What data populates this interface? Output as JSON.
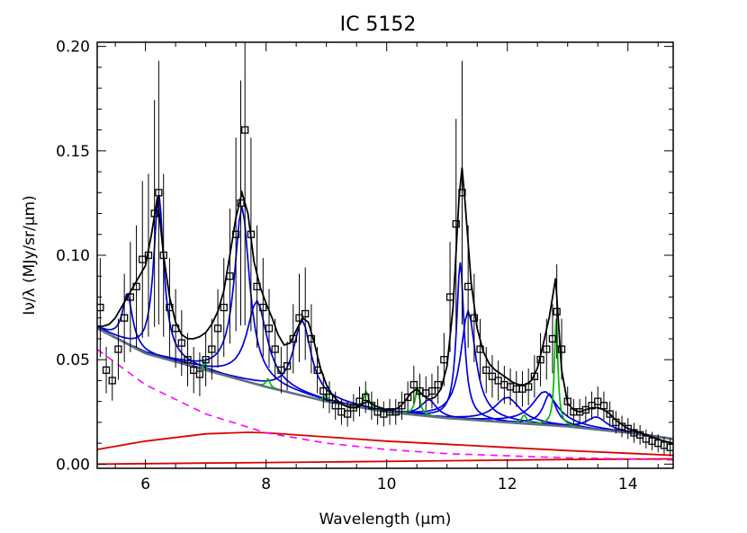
{
  "chart_data": {
    "type": "line",
    "title": "IC 5152",
    "xlabel": "Wavelength (μm)",
    "ylabel": "Iν/λ (MJy/sr/μm)",
    "xlim": [
      5.2,
      14.75
    ],
    "ylim": [
      -0.002,
      0.202
    ],
    "x_ticks": [
      6,
      8,
      10,
      12,
      14
    ],
    "x_tick_labels": [
      "6",
      "8",
      "10",
      "12",
      "14"
    ],
    "y_ticks": [
      0.0,
      0.05,
      0.1,
      0.15,
      0.2
    ],
    "y_tick_labels": [
      "0.00",
      "0.05",
      "0.10",
      "0.15",
      "0.20"
    ],
    "grid": false,
    "colors": {
      "data": "#000000",
      "total_fit": "#000000",
      "pah_features": "#0000dd",
      "atomic_lines": "#00bb00",
      "continuum": "#607080",
      "dust_components": "#dd0000",
      "stellar": "#ff00ff"
    },
    "series": [
      {
        "role": "data",
        "x": [
          5.25,
          5.35,
          5.45,
          5.55,
          5.65,
          5.75,
          5.85,
          5.95,
          6.05,
          6.15,
          6.22,
          6.3,
          6.4,
          6.5,
          6.6,
          6.7,
          6.8,
          6.9,
          7.0,
          7.1,
          7.2,
          7.3,
          7.4,
          7.5,
          7.58,
          7.65,
          7.75,
          7.85,
          7.95,
          8.05,
          8.15,
          8.25,
          8.35,
          8.45,
          8.55,
          8.65,
          8.75,
          8.85,
          8.95,
          9.05,
          9.15,
          9.25,
          9.35,
          9.45,
          9.55,
          9.65,
          9.75,
          9.85,
          9.95,
          10.05,
          10.15,
          10.25,
          10.35,
          10.45,
          10.55,
          10.65,
          10.75,
          10.85,
          10.95,
          11.05,
          11.15,
          11.25,
          11.35,
          11.45,
          11.55,
          11.65,
          11.75,
          11.85,
          11.95,
          12.05,
          12.15,
          12.25,
          12.35,
          12.45,
          12.55,
          12.65,
          12.75,
          12.82,
          12.9,
          13.0,
          13.1,
          13.2,
          13.3,
          13.4,
          13.5,
          13.6,
          13.7,
          13.8,
          13.9,
          14.0,
          14.1,
          14.2,
          14.3,
          14.4,
          14.5,
          14.6,
          14.7
        ],
        "y": [
          0.075,
          0.045,
          0.04,
          0.055,
          0.07,
          0.08,
          0.085,
          0.098,
          0.1,
          0.12,
          0.13,
          0.1,
          0.075,
          0.065,
          0.058,
          0.05,
          0.045,
          0.043,
          0.05,
          0.055,
          0.065,
          0.075,
          0.09,
          0.11,
          0.125,
          0.16,
          0.11,
          0.085,
          0.075,
          0.065,
          0.055,
          0.045,
          0.047,
          0.06,
          0.07,
          0.072,
          0.06,
          0.045,
          0.035,
          0.032,
          0.028,
          0.025,
          0.024,
          0.027,
          0.03,
          0.032,
          0.028,
          0.025,
          0.024,
          0.025,
          0.025,
          0.028,
          0.032,
          0.038,
          0.035,
          0.034,
          0.035,
          0.038,
          0.05,
          0.08,
          0.115,
          0.13,
          0.085,
          0.07,
          0.055,
          0.045,
          0.042,
          0.04,
          0.038,
          0.037,
          0.036,
          0.036,
          0.037,
          0.042,
          0.05,
          0.055,
          0.06,
          0.073,
          0.055,
          0.03,
          0.025,
          0.025,
          0.026,
          0.028,
          0.03,
          0.028,
          0.024,
          0.02,
          0.018,
          0.017,
          0.015,
          0.014,
          0.012,
          0.011,
          0.01,
          0.009,
          0.008
        ]
      },
      {
        "role": "total-fit",
        "x": [
          5.2,
          5.3,
          5.4,
          5.5,
          5.6,
          5.7,
          5.8,
          5.9,
          6.0,
          6.1,
          6.2,
          6.3,
          6.4,
          6.5,
          6.6,
          6.7,
          6.8,
          6.9,
          7.0,
          7.1,
          7.2,
          7.3,
          7.4,
          7.5,
          7.6,
          7.7,
          7.8,
          7.9,
          8.0,
          8.1,
          8.2,
          8.3,
          8.4,
          8.5,
          8.6,
          8.7,
          8.8,
          8.9,
          9.0,
          9.1,
          9.2,
          9.3,
          9.4,
          9.5,
          9.6,
          9.7,
          9.8,
          9.9,
          10.0,
          10.1,
          10.2,
          10.3,
          10.4,
          10.5,
          10.6,
          10.7,
          10.8,
          10.9,
          11.0,
          11.1,
          11.2,
          11.25,
          11.3,
          11.4,
          11.5,
          11.6,
          11.7,
          11.8,
          11.9,
          12.0,
          12.1,
          12.2,
          12.3,
          12.4,
          12.5,
          12.6,
          12.7,
          12.8,
          12.9,
          13.0,
          13.1,
          13.2,
          13.3,
          13.4,
          13.5,
          13.6,
          13.7,
          13.8,
          13.9,
          14.0,
          14.2,
          14.4,
          14.6,
          14.75
        ],
        "y": [
          0.066,
          0.066,
          0.067,
          0.07,
          0.075,
          0.08,
          0.085,
          0.09,
          0.095,
          0.11,
          0.128,
          0.1,
          0.08,
          0.068,
          0.062,
          0.06,
          0.06,
          0.061,
          0.063,
          0.067,
          0.073,
          0.083,
          0.1,
          0.118,
          0.13,
          0.12,
          0.097,
          0.085,
          0.077,
          0.07,
          0.062,
          0.057,
          0.058,
          0.064,
          0.07,
          0.068,
          0.058,
          0.046,
          0.038,
          0.033,
          0.03,
          0.028,
          0.027,
          0.027,
          0.029,
          0.03,
          0.028,
          0.027,
          0.026,
          0.026,
          0.027,
          0.03,
          0.034,
          0.036,
          0.033,
          0.031,
          0.032,
          0.036,
          0.047,
          0.075,
          0.128,
          0.142,
          0.125,
          0.087,
          0.065,
          0.054,
          0.048,
          0.045,
          0.043,
          0.041,
          0.039,
          0.038,
          0.038,
          0.04,
          0.046,
          0.058,
          0.071,
          0.089,
          0.045,
          0.029,
          0.026,
          0.025,
          0.026,
          0.027,
          0.027,
          0.026,
          0.024,
          0.021,
          0.019,
          0.017,
          0.015,
          0.013,
          0.011,
          0.01
        ]
      },
      {
        "role": "continuum-total",
        "x": [
          5.2,
          6.0,
          7.0,
          8.0,
          9.0,
          10.0,
          11.0,
          12.0,
          13.0,
          14.0,
          14.75
        ],
        "y": [
          0.065,
          0.053,
          0.045,
          0.037,
          0.03,
          0.025,
          0.022,
          0.02,
          0.018,
          0.015,
          0.012
        ]
      },
      {
        "role": "stellar-continuum",
        "x": [
          5.2,
          6.0,
          7.0,
          8.0,
          9.0,
          10.0,
          11.0,
          12.0,
          13.0,
          14.0,
          14.75
        ],
        "y": [
          0.055,
          0.038,
          0.024,
          0.015,
          0.01,
          0.007,
          0.005,
          0.004,
          0.003,
          0.0025,
          0.002
        ]
      },
      {
        "role": "dust-continuum-warm",
        "x": [
          5.2,
          6.0,
          7.0,
          7.7,
          8.0,
          9.0,
          10.0,
          11.0,
          12.0,
          13.0,
          14.0,
          14.75
        ],
        "y": [
          0.007,
          0.011,
          0.0145,
          0.0152,
          0.015,
          0.013,
          0.011,
          0.0095,
          0.008,
          0.0065,
          0.0052,
          0.0042
        ]
      },
      {
        "role": "dust-continuum-cold",
        "x": [
          5.2,
          7.0,
          9.0,
          11.0,
          13.0,
          14.75
        ],
        "y": [
          0.0,
          0.0005,
          0.001,
          0.0016,
          0.0022,
          0.0025
        ]
      }
    ],
    "pah_features": [
      {
        "center": 5.7,
        "amplitude": 0.024,
        "fwhm": 0.2
      },
      {
        "center": 6.22,
        "amplitude": 0.078,
        "fwhm": 0.2
      },
      {
        "center": 7.6,
        "amplitude": 0.083,
        "fwhm": 0.3
      },
      {
        "center": 7.85,
        "amplitude": 0.04,
        "fwhm": 0.4
      },
      {
        "center": 8.6,
        "amplitude": 0.036,
        "fwhm": 0.35
      },
      {
        "center": 11.22,
        "amplitude": 0.075,
        "fwhm": 0.15
      },
      {
        "center": 11.35,
        "amplitude": 0.052,
        "fwhm": 0.3
      },
      {
        "center": 10.7,
        "amplitude": 0.008,
        "fwhm": 0.3
      },
      {
        "center": 12.0,
        "amplitude": 0.012,
        "fwhm": 0.5
      },
      {
        "center": 12.62,
        "amplitude": 0.016,
        "fwhm": 0.5
      },
      {
        "center": 12.7,
        "amplitude": 0.015,
        "fwhm": 0.25
      },
      {
        "center": 13.48,
        "amplitude": 0.006,
        "fwhm": 0.4
      }
    ],
    "atomic_lines": [
      {
        "center": 6.98,
        "amplitude": 0.004,
        "fwhm": 0.05
      },
      {
        "center": 8.03,
        "amplitude": 0.004,
        "fwhm": 0.08
      },
      {
        "center": 8.99,
        "amplitude": 0.003,
        "fwhm": 0.08
      },
      {
        "center": 9.66,
        "amplitude": 0.008,
        "fwhm": 0.1
      },
      {
        "center": 10.51,
        "amplitude": 0.012,
        "fwhm": 0.1
      },
      {
        "center": 12.28,
        "amplitude": 0.004,
        "fwhm": 0.1
      },
      {
        "center": 12.81,
        "amplitude": 0.051,
        "fwhm": 0.07
      }
    ]
  }
}
